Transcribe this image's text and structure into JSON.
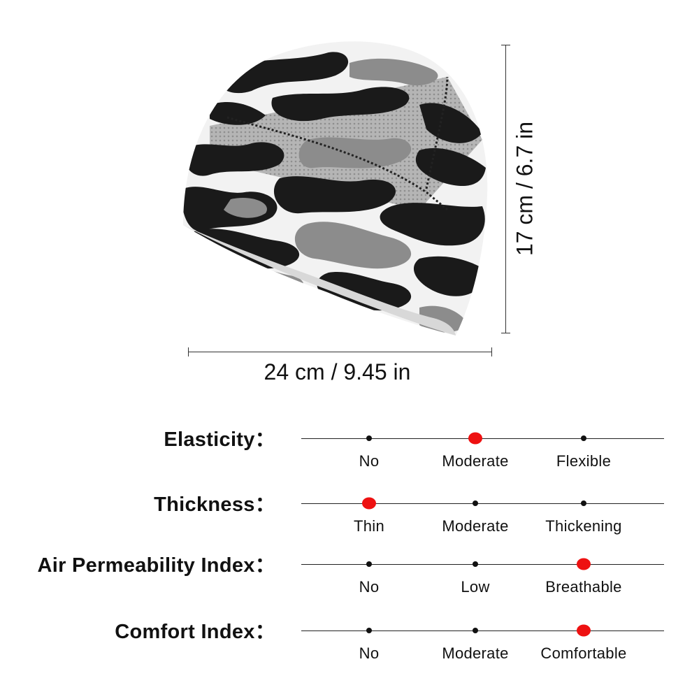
{
  "product": {
    "image_name": "camo-skull-cap",
    "colors": {
      "black": "#1a1a1a",
      "gray": "#8c8c8c",
      "white": "#f3f3f3",
      "mesh": "#bdbdbd"
    }
  },
  "dimensions": {
    "width_label": "24 cm / 9.45 in",
    "height_label": "17 cm / 6.7 in"
  },
  "accent_color": "#ee1111",
  "ratings": [
    {
      "label": "Elasticity：",
      "options": [
        "No",
        "Moderate",
        "Flexible"
      ],
      "selected": 1
    },
    {
      "label": "Thickness：",
      "options": [
        "Thin",
        "Moderate",
        "Thickening"
      ],
      "selected": 0
    },
    {
      "label": "Air Permeability Index：",
      "options": [
        "No",
        "Low",
        "Breathable"
      ],
      "selected": 2
    },
    {
      "label": "Comfort Index：",
      "options": [
        "No",
        "Moderate",
        "Comfortable"
      ],
      "selected": 2
    }
  ]
}
